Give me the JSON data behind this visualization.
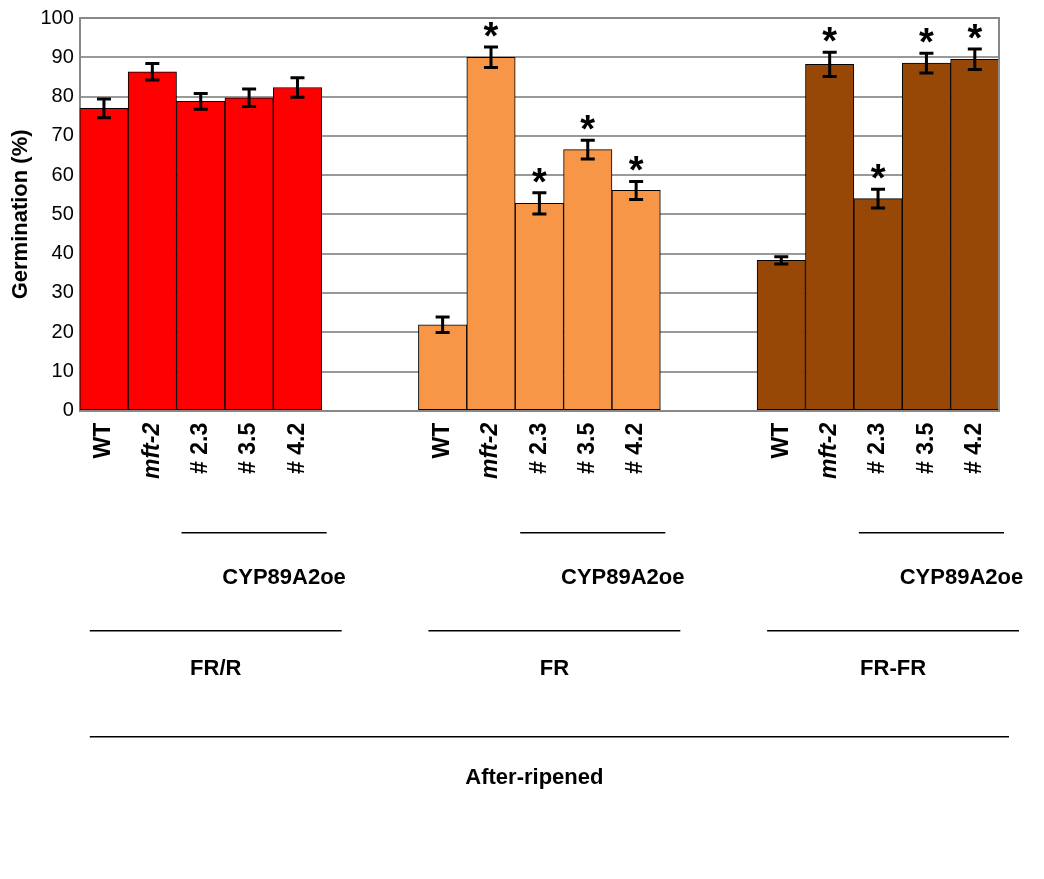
{
  "chart_data": {
    "type": "bar",
    "ylabel": "Germination (%)",
    "categories": [
      "WT",
      "mft-2",
      "# 2.3",
      "# 3.5",
      "# 4.2",
      null,
      null,
      "WT",
      "mft-2",
      "# 2.3",
      "# 3.5",
      "# 4.2",
      null,
      null,
      "WT",
      "mft-2",
      "# 2.3",
      "# 3.5",
      "# 4.2"
    ],
    "values": [
      77,
      86.3,
      78.8,
      79.7,
      82.3,
      null,
      null,
      21.9,
      90,
      52.8,
      66.5,
      56.1,
      null,
      null,
      38.3,
      88.2,
      54,
      88.5,
      89.5
    ],
    "errors": [
      2.4,
      2.1,
      2,
      2.2,
      2.5,
      null,
      null,
      2,
      2.6,
      2.7,
      2.4,
      2.3,
      null,
      null,
      0.9,
      3.1,
      2.4,
      2.5,
      2.6
    ],
    "value_labels": [
      null,
      null,
      null,
      null,
      null,
      null,
      null,
      null,
      "*",
      "*",
      "*",
      "*",
      null,
      null,
      null,
      "*",
      "*",
      "*",
      "*"
    ],
    "colors": [
      "#ff0000",
      "#ff0000",
      "#ff0000",
      "#ff0000",
      "#ff0000",
      null,
      null,
      "#f79646",
      "#f79646",
      "#f79646",
      "#f79646",
      "#f79646",
      null,
      null,
      "#974806",
      "#974806",
      "#974806",
      "#974806",
      "#974806"
    ],
    "ylim": [
      0,
      100
    ],
    "yticks": [
      0,
      10,
      20,
      30,
      40,
      50,
      60,
      70,
      80,
      90,
      100
    ],
    "grid": "y",
    "legend": false,
    "annotations": [
      "CYP89A2oe",
      "CYP89A2oe",
      "CYP89A2oe",
      "FR/R",
      "FR",
      "FR-FR",
      "After-ripened"
    ]
  }
}
